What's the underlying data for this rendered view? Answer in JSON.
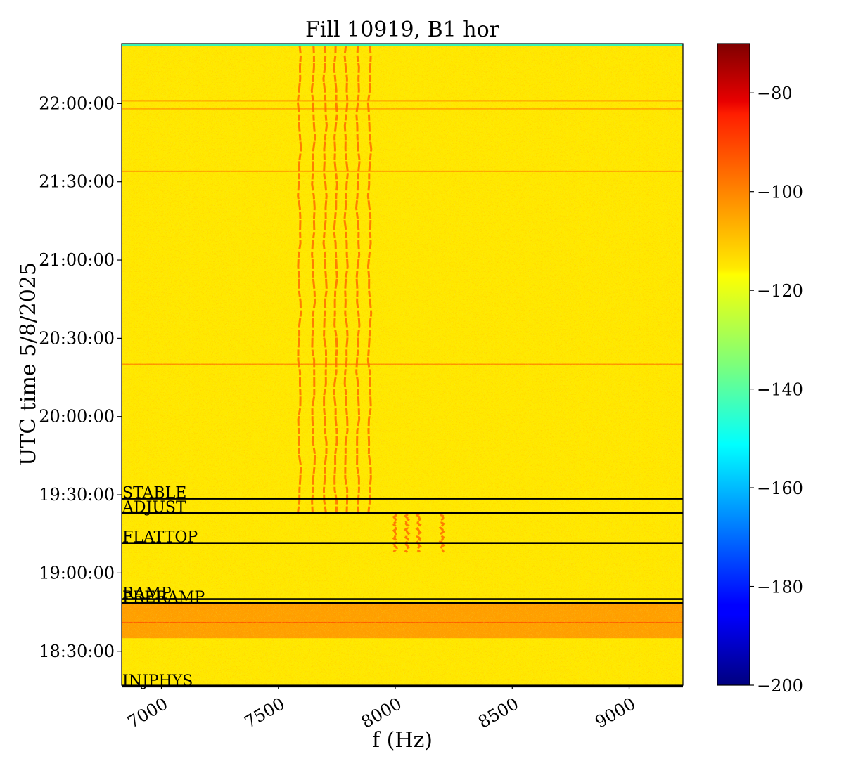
{
  "chart_data": {
    "type": "heatmap",
    "title": "Fill 10919, B1 hor",
    "xlabel": "f (Hz)",
    "ylabel": "UTC time 5/8/2025",
    "xlim": [
      6830,
      9230
    ],
    "ylim": [
      "18:17:00",
      "22:23:00"
    ],
    "x_ticks": [
      7000,
      7500,
      8000,
      8500,
      9000
    ],
    "x_tick_labels": [
      "7000",
      "7500",
      "8000",
      "8500",
      "9000"
    ],
    "y_ticks": [
      "18:30:00",
      "19:00:00",
      "19:30:00",
      "20:00:00",
      "20:30:00",
      "21:00:00",
      "21:30:00",
      "22:00:00"
    ],
    "y_tick_labels": [
      "18:30:00",
      "19:00:00",
      "19:30:00",
      "20:00:00",
      "20:30:00",
      "21:00:00",
      "21:30:00",
      "22:00:00"
    ],
    "colorbar": {
      "colormap": "jet",
      "range": [
        -200,
        -70
      ],
      "ticks": [
        -200,
        -180,
        -160,
        -140,
        -120,
        -100,
        -80
      ],
      "tick_labels": [
        "−200",
        "−180",
        "−160",
        "−140",
        "−120",
        "−100",
        "−80"
      ]
    },
    "background_level": -116,
    "phase_markers": [
      {
        "label": "STABLE",
        "time": "19:28:30"
      },
      {
        "label": "ADJUST",
        "time": "19:23:00"
      },
      {
        "label": "FLATTOP",
        "time": "19:11:30"
      },
      {
        "label": "RAMP",
        "time": "18:50:00"
      },
      {
        "label": "PRERAMP",
        "time": "18:48:30"
      },
      {
        "label": "INJPHYS",
        "time": "18:16:30"
      }
    ],
    "spectral_lines": [
      {
        "f": 7590,
        "start": "19:23:00",
        "end": "22:23:00"
      },
      {
        "f": 7650,
        "start": "19:23:00",
        "end": "22:23:00"
      },
      {
        "f": 7700,
        "start": "19:23:00",
        "end": "22:23:00"
      },
      {
        "f": 7745,
        "start": "19:23:00",
        "end": "22:23:00"
      },
      {
        "f": 7790,
        "start": "19:23:00",
        "end": "22:23:00"
      },
      {
        "f": 7840,
        "start": "19:23:00",
        "end": "22:23:00"
      },
      {
        "f": 7890,
        "start": "19:23:00",
        "end": "22:23:00"
      },
      {
        "f": 8000,
        "start": "19:08:00",
        "end": "19:23:00"
      },
      {
        "f": 8050,
        "start": "19:08:00",
        "end": "19:23:00"
      },
      {
        "f": 8100,
        "start": "19:08:00",
        "end": "19:23:00"
      },
      {
        "f": 8200,
        "start": "19:08:00",
        "end": "19:23:00"
      }
    ],
    "high_noise_band": {
      "start": "18:35:00",
      "end": "18:48:00",
      "level": -103
    },
    "horizontal_features": [
      {
        "time": "18:41:00",
        "level": -95
      },
      {
        "time": "20:20:00",
        "level": -100
      },
      {
        "time": "21:34:00",
        "level": -102
      },
      {
        "time": "21:58:00",
        "level": -104
      },
      {
        "time": "22:01:00",
        "level": -106
      }
    ]
  }
}
